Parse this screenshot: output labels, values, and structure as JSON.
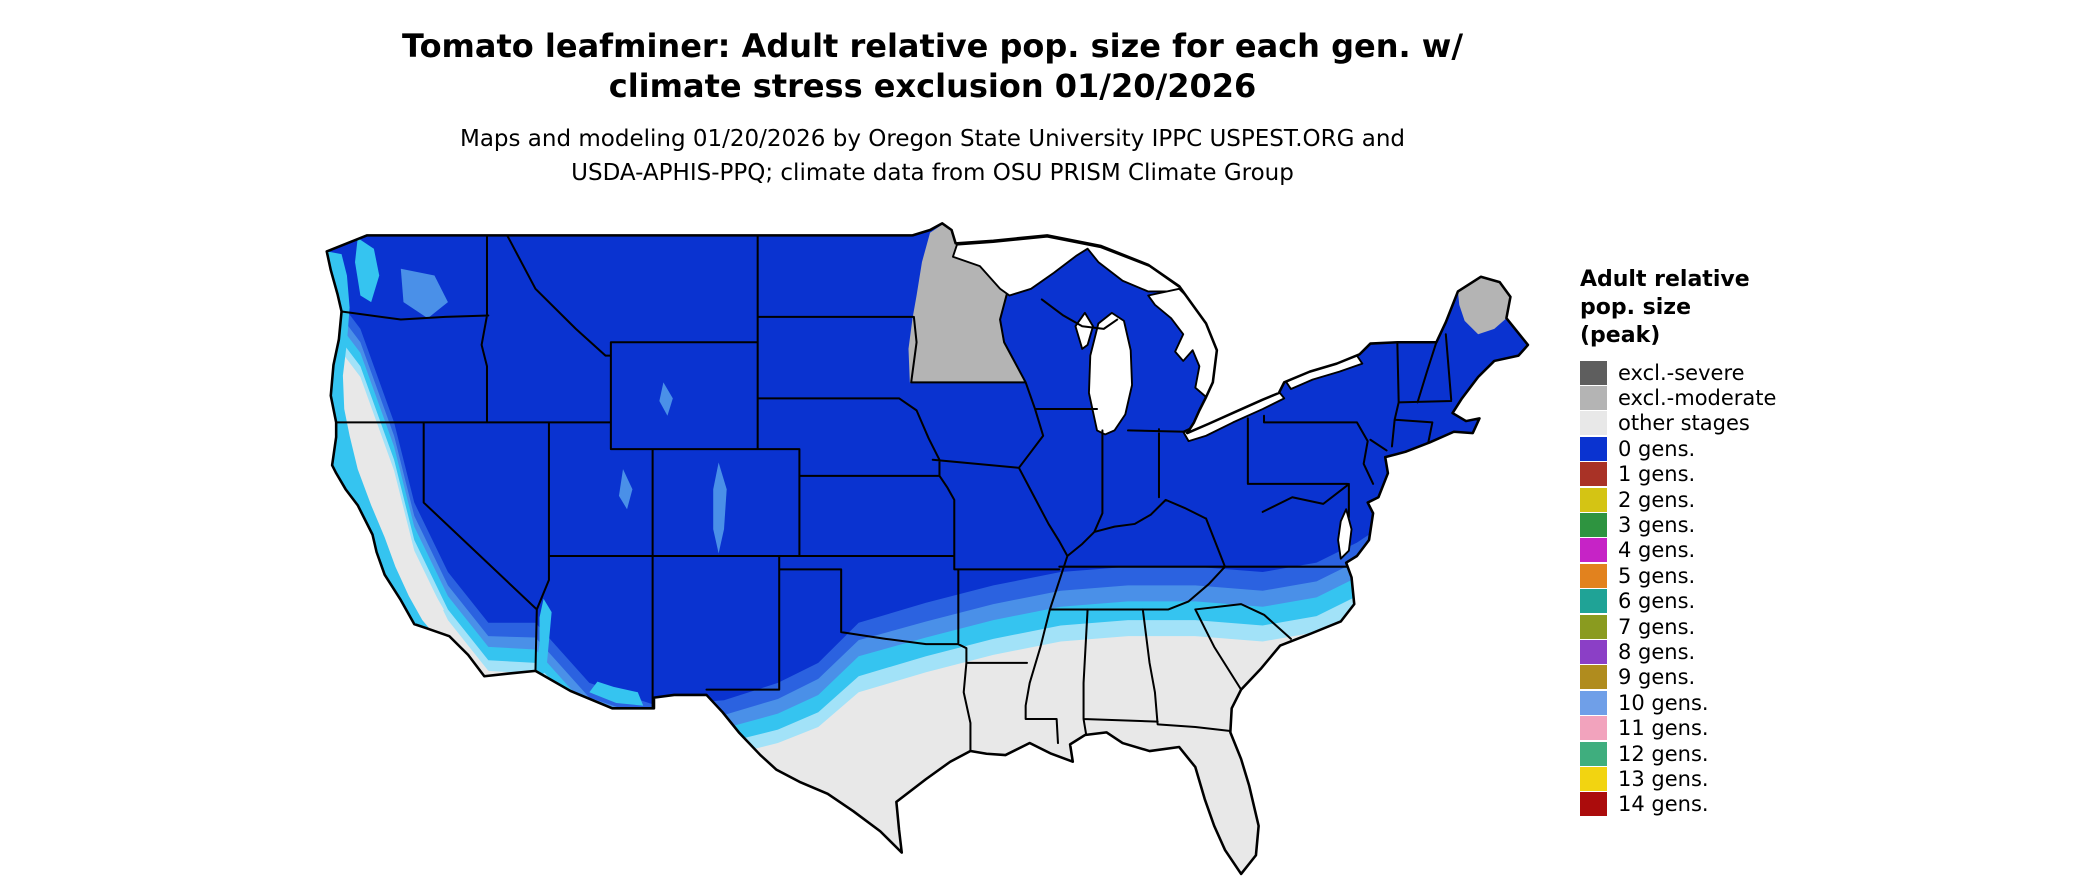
{
  "header": {
    "title_line1": "Tomato leafminer: Adult relative pop. size for each gen. w/",
    "title_line2": "climate stress exclusion 01/20/2026",
    "subtitle_line1": "Maps and modeling 01/20/2026 by Oregon State University IPPC USPEST.ORG and",
    "subtitle_line2": "USDA-APHIS-PPQ; climate data from OSU PRISM Climate Group"
  },
  "legend": {
    "title_lines": [
      "Adult relative",
      "pop. size",
      "(peak)"
    ],
    "items": [
      {
        "label": "excl.-severe",
        "color": "#5e5e5e"
      },
      {
        "label": "excl.-moderate",
        "color": "#b4b4b4"
      },
      {
        "label": "other stages",
        "color": "#e8e8e8"
      },
      {
        "label": "0 gens.",
        "color": "#0a33d0"
      },
      {
        "label": "1 gens.",
        "color": "#a93226"
      },
      {
        "label": "2 gens.",
        "color": "#d4c414"
      },
      {
        "label": "3 gens.",
        "color": "#2e9440"
      },
      {
        "label": "4 gens.",
        "color": "#c623c6"
      },
      {
        "label": "5 gens.",
        "color": "#e2821e"
      },
      {
        "label": "6 gens.",
        "color": "#1fa396"
      },
      {
        "label": "7 gens.",
        "color": "#8a9b1f"
      },
      {
        "label": "8 gens.",
        "color": "#8b3fc6"
      },
      {
        "label": "9 gens.",
        "color": "#b08c1e"
      },
      {
        "label": "10 gens.",
        "color": "#6f9fe8"
      },
      {
        "label": "11 gens.",
        "color": "#f2a3bd"
      },
      {
        "label": "12 gens.",
        "color": "#3fae7e"
      },
      {
        "label": "13 gens.",
        "color": "#f2d411"
      },
      {
        "label": "14 gens.",
        "color": "#ab0c0c"
      }
    ]
  },
  "map": {
    "region": "Contiguous United States",
    "colors": {
      "gens0": "#0a33d0",
      "blue_med": "#2b62e0",
      "blue_light": "#4a90e8",
      "cyan": "#35c4f0",
      "cyan_pale": "#a2e2f8",
      "excl_moderate": "#b4b4b4",
      "other_stages": "#e8e8e8",
      "border": "#000000",
      "water": "#ffffff"
    }
  }
}
